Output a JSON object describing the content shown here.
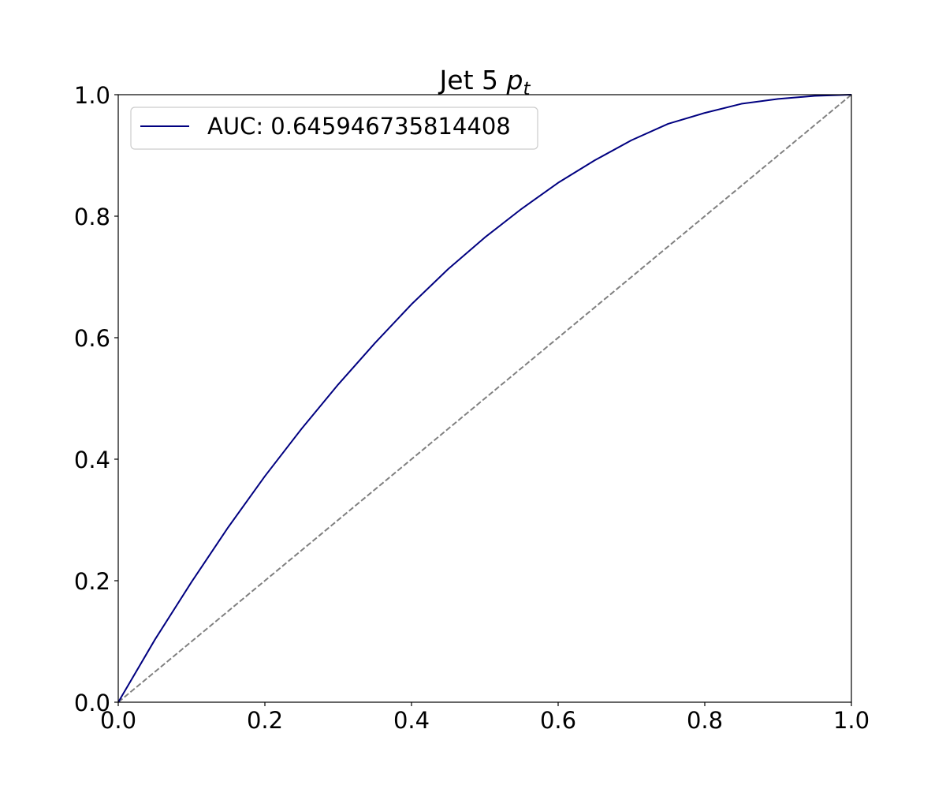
{
  "chart_data": {
    "type": "line",
    "title": {
      "main": "Jet 5 ",
      "symbol": "p",
      "subscript": "t"
    },
    "xlabel": "",
    "ylabel": "",
    "xlim": [
      0.0,
      1.0
    ],
    "ylim": [
      0.0,
      1.0
    ],
    "x_ticks": [
      "0.0",
      "0.2",
      "0.4",
      "0.6",
      "0.8",
      "1.0"
    ],
    "y_ticks": [
      "0.0",
      "0.2",
      "0.4",
      "0.6",
      "0.8",
      "1.0"
    ],
    "grid": false,
    "legend": {
      "position": "upper-left",
      "entries": [
        "AUC: 0.645946735814408"
      ]
    },
    "series": [
      {
        "name": "AUC: 0.645946735814408",
        "color": "#000080",
        "style": "solid",
        "x": [
          0.0,
          0.05,
          0.1,
          0.15,
          0.2,
          0.25,
          0.3,
          0.35,
          0.4,
          0.45,
          0.5,
          0.55,
          0.6,
          0.65,
          0.7,
          0.75,
          0.8,
          0.85,
          0.9,
          0.95,
          1.0
        ],
        "y": [
          0.0,
          0.103,
          0.198,
          0.288,
          0.372,
          0.45,
          0.523,
          0.591,
          0.655,
          0.713,
          0.765,
          0.812,
          0.855,
          0.892,
          0.925,
          0.952,
          0.97,
          0.985,
          0.993,
          0.998,
          1.0
        ]
      },
      {
        "color": "#808080",
        "style": "dashed",
        "x": [
          0.0,
          1.0
        ],
        "y": [
          0.0,
          1.0
        ]
      }
    ]
  }
}
